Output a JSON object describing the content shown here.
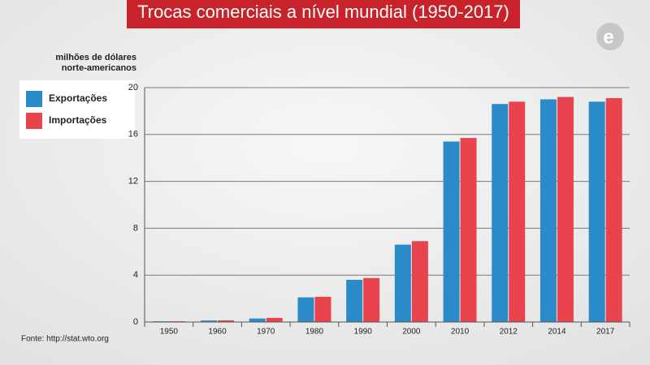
{
  "chart_data": {
    "type": "bar",
    "title": "Trocas comerciais a nível mundial (1950-2017)",
    "y_label": [
      "milhões de dólares",
      "norte-americanos"
    ],
    "source": "Fonte: http://stat.wto.org",
    "logo": "e",
    "categories": [
      "1950",
      "1960",
      "1970",
      "1980",
      "1990",
      "2000",
      "2010",
      "2012",
      "2014",
      "2017"
    ],
    "series": [
      {
        "name": "Exportações",
        "color": "#2b8bc9",
        "values": [
          0.06,
          0.13,
          0.3,
          2.1,
          3.6,
          6.6,
          15.4,
          18.6,
          19.0,
          18.8
        ]
      },
      {
        "name": "Importações",
        "color": "#e9434d",
        "values": [
          0.06,
          0.14,
          0.35,
          2.15,
          3.75,
          6.9,
          15.7,
          18.8,
          19.2,
          19.1
        ]
      }
    ],
    "ylim": [
      0,
      20
    ],
    "yticks": [
      0,
      4,
      8,
      12,
      16,
      20
    ],
    "grid": true,
    "legend": "upper left"
  }
}
